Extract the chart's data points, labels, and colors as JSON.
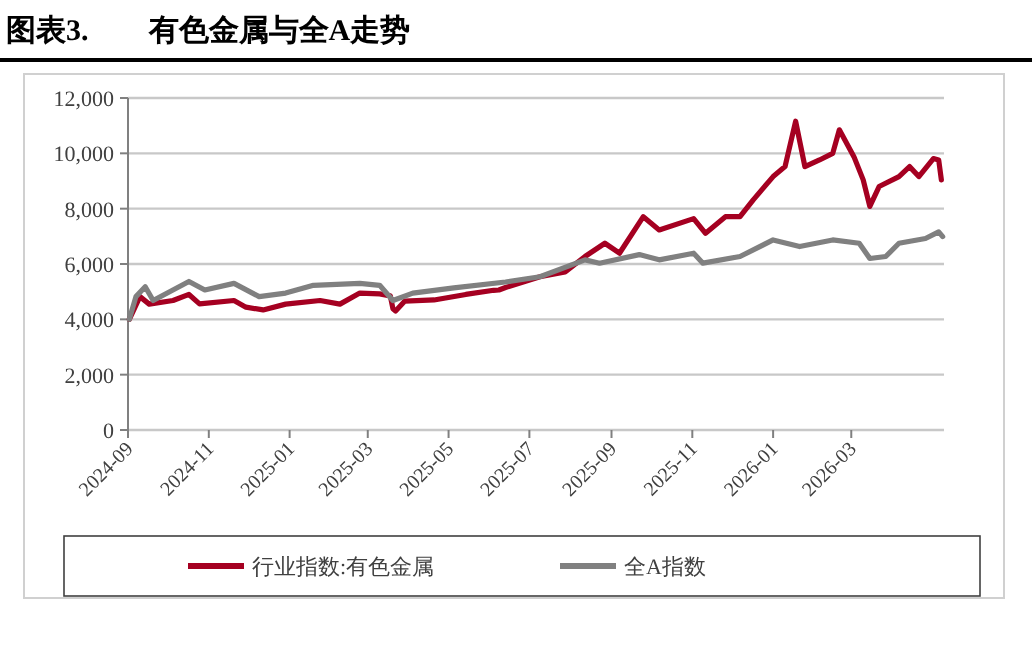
{
  "chart_data": {
    "type": "line",
    "title": "图表3.　　有色金属与全A走势",
    "xlim": [
      "2024-09-01",
      "2026-05-10"
    ],
    "xticks": [
      "2024-09",
      "2024-11",
      "2025-01",
      "2025-03",
      "2025-05",
      "2025-07",
      "2025-09",
      "2025-11",
      "2026-01",
      "2026-03"
    ],
    "ylim": [
      0,
      12000
    ],
    "yticks": [
      0,
      {
        "value": 2000,
        "label": "2,000"
      },
      {
        "value": 4000,
        "label": "4,000"
      },
      {
        "value": 6000,
        "label": "6,000"
      },
      {
        "value": 8000,
        "label": "8,000"
      },
      {
        "value": 10000,
        "label": "10,000"
      },
      {
        "value": 12000,
        "label": "12,000"
      }
    ],
    "grid": "y",
    "legend": "bottom",
    "marker": "none",
    "line_style": "solid",
    "series": [
      {
        "name": "行业指数:有色金属",
        "color": "#a50021",
        "x": [
          "2024-09-02",
          "2024-09-10",
          "2024-09-17",
          "2024-10-05",
          "2024-10-17",
          "2024-10-25",
          "2024-11-20",
          "2024-11-29",
          "2024-12-12",
          "2024-12-29",
          "2025-01-24",
          "2025-02-08",
          "2025-02-23",
          "2025-03-10",
          "2025-03-18",
          "2025-03-20",
          "2025-03-22",
          "2025-03-29",
          "2025-04-20",
          "2025-05-14",
          "2025-06-04",
          "2025-06-08",
          "2025-06-13",
          "2025-07-09",
          "2025-07-28",
          "2025-08-12",
          "2025-08-27",
          "2025-09-07",
          "2025-09-25",
          "2025-10-07",
          "2025-11-02",
          "2025-11-11",
          "2025-11-26",
          "2025-12-07",
          "2025-12-17",
          "2026-01-01",
          "2026-01-10",
          "2026-01-18",
          "2026-01-25",
          "2026-02-05",
          "2026-02-15",
          "2026-02-20",
          "2026-03-03",
          "2026-03-10",
          "2026-03-15",
          "2026-03-22",
          "2026-04-06",
          "2026-04-14",
          "2026-04-21",
          "2026-05-02",
          "2026-05-06",
          "2026-05-08"
        ],
        "values": [
          4000,
          4820,
          4550,
          4680,
          4900,
          4560,
          4680,
          4440,
          4340,
          4550,
          4680,
          4550,
          4950,
          4920,
          4850,
          4380,
          4300,
          4660,
          4700,
          4900,
          5050,
          5060,
          5150,
          5540,
          5710,
          6270,
          6750,
          6390,
          7710,
          7230,
          7640,
          7110,
          7710,
          7710,
          8320,
          9160,
          9520,
          11160,
          9520,
          9760,
          10000,
          10850,
          9880,
          9040,
          8080,
          8800,
          9160,
          9520,
          9160,
          9810,
          9760,
          9040
        ]
      },
      {
        "name": "全A指数",
        "color": "#808080",
        "x": [
          "2024-09-02",
          "2024-09-07",
          "2024-09-14",
          "2024-09-20",
          "2024-10-17",
          "2024-10-29",
          "2024-11-20",
          "2024-12-09",
          "2024-12-29",
          "2025-01-19",
          "2025-02-23",
          "2025-03-10",
          "2025-03-20",
          "2025-04-04",
          "2025-05-05",
          "2025-06-13",
          "2025-07-09",
          "2025-08-12",
          "2025-08-23",
          "2025-09-22",
          "2025-10-07",
          "2025-11-02",
          "2025-11-09",
          "2025-12-07",
          "2026-01-01",
          "2026-01-21",
          "2026-02-15",
          "2026-03-07",
          "2026-03-15",
          "2026-03-27",
          "2026-04-06",
          "2026-04-26",
          "2026-05-06",
          "2026-05-09"
        ],
        "values": [
          4000,
          4820,
          5180,
          4680,
          5370,
          5060,
          5300,
          4820,
          4950,
          5230,
          5300,
          5230,
          4680,
          4950,
          5140,
          5350,
          5540,
          6150,
          6030,
          6340,
          6150,
          6390,
          6030,
          6270,
          6870,
          6630,
          6870,
          6750,
          6200,
          6270,
          6750,
          6920,
          7160,
          6990
        ]
      }
    ]
  }
}
